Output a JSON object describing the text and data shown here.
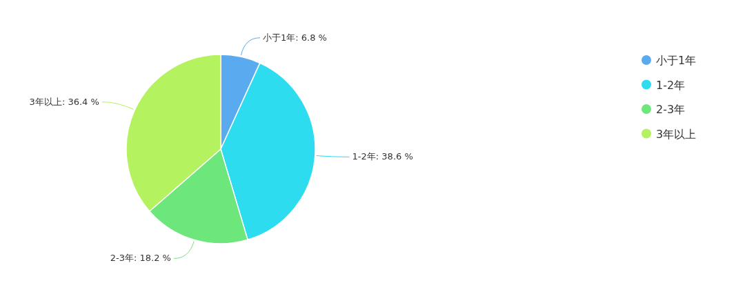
{
  "chart_data": {
    "type": "pie",
    "categories": [
      "小于1年",
      "1-2年",
      "2-3年",
      "3年以上"
    ],
    "values": [
      6.8,
      38.6,
      18.2,
      36.4
    ],
    "colors": [
      "#5aaaf0",
      "#2ddcee",
      "#6de67b",
      "#b5f25f"
    ],
    "value_labels": [
      "小于1年: 6.8 %",
      "1-2年: 38.6 %",
      "2-3年: 18.2 %",
      "3年以上: 36.4 %"
    ],
    "legend": "top right"
  }
}
